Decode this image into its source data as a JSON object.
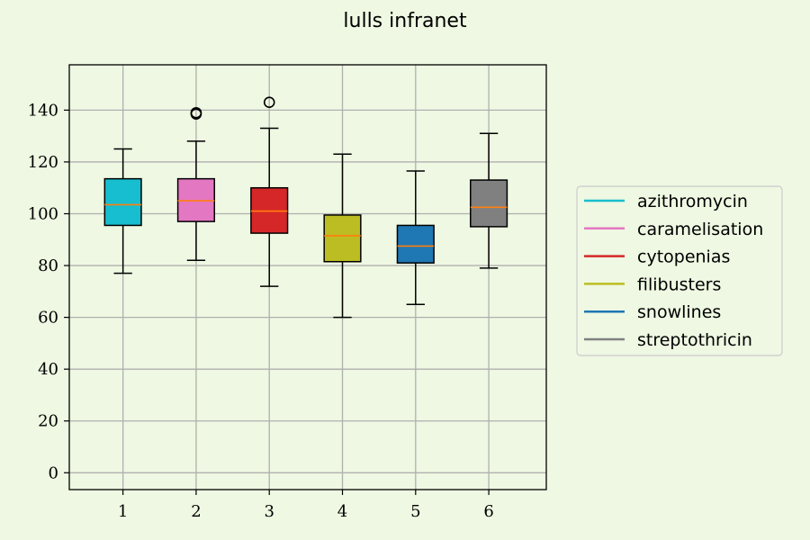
{
  "chart_data": {
    "type": "boxplot",
    "title": "lulls infranet",
    "xlabel": "",
    "ylabel": "",
    "ylim": [
      -6.5,
      157.5
    ],
    "yticks": [
      0,
      20,
      40,
      60,
      80,
      100,
      120,
      140
    ],
    "categories": [
      "1",
      "2",
      "3",
      "4",
      "5",
      "6"
    ],
    "grid": true,
    "legend_position": "right",
    "median_color": "#ff7f0e",
    "series": [
      {
        "name": "azithromycin",
        "color": "#17becf",
        "whisker_low": 77,
        "q1": 95.5,
        "median": 103.5,
        "q3": 113.5,
        "whisker_high": 125,
        "outliers": []
      },
      {
        "name": "caramelisation",
        "color": "#e377c2",
        "whisker_low": 82,
        "q1": 97,
        "median": 105,
        "q3": 113.5,
        "whisker_high": 128,
        "outliers": [
          138.5,
          139
        ]
      },
      {
        "name": "cytopenias",
        "color": "#d62728",
        "whisker_low": 72,
        "q1": 92.5,
        "median": 101,
        "q3": 110,
        "whisker_high": 133,
        "outliers": [
          143
        ]
      },
      {
        "name": "filibusters",
        "color": "#bcbd22",
        "whisker_low": 60,
        "q1": 81.5,
        "median": 91.5,
        "q3": 99.5,
        "whisker_high": 123,
        "outliers": []
      },
      {
        "name": "snowlines",
        "color": "#1f77b4",
        "whisker_low": 65,
        "q1": 81,
        "median": 87.5,
        "q3": 95.5,
        "whisker_high": 116.5,
        "outliers": []
      },
      {
        "name": "streptothricin",
        "color": "#808080",
        "whisker_low": 79,
        "q1": 95,
        "median": 102.5,
        "q3": 113,
        "whisker_high": 131,
        "outliers": []
      }
    ]
  }
}
